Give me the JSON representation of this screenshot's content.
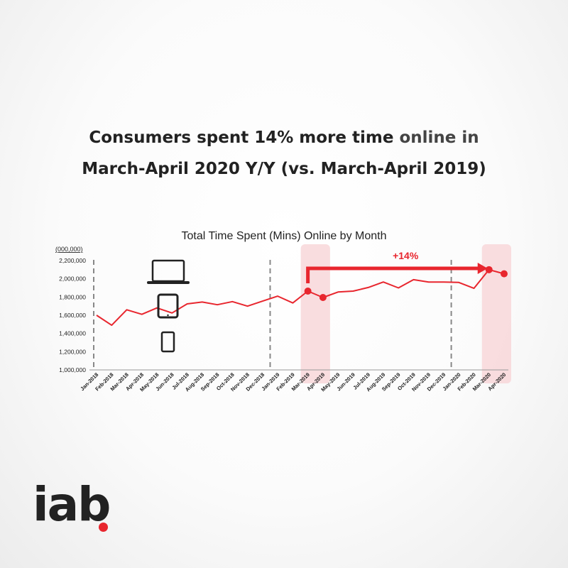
{
  "headline": {
    "line1_part1": "Consumers spent 14% more time ",
    "line1_part2": "online in",
    "line2": "March-April 2020 Y/Y (vs. March-April 2019)"
  },
  "logo": {
    "text": "iab"
  },
  "colors": {
    "series": "#e8262e",
    "highlight": "#f8d7d9",
    "arrow": "#e8262e"
  },
  "icons": [
    "laptop-icon",
    "tablet-icon",
    "phone-icon"
  ],
  "chart_data": {
    "type": "line",
    "title": "Total Time Spent (Mins) Online by Month",
    "unit_label": "(000,000)",
    "categories": [
      "Jan-2018",
      "Feb-2018",
      "Mar-2018",
      "Apr-2018",
      "May-2018",
      "Jun-2018",
      "Jul-2018",
      "Aug-2018",
      "Sep-2018",
      "Oct-2018",
      "Nov-2018",
      "Dec-2018",
      "Jan-2019",
      "Feb-2019",
      "Mar-2019",
      "Apr-2019",
      "May-2019",
      "Jun-2019",
      "Jul-2019",
      "Aug-2019",
      "Sep-2019",
      "Oct-2019",
      "Nov-2019",
      "Dec-2019",
      "Jan-2020",
      "Feb-2020",
      "Mar-2020",
      "Apr-2020"
    ],
    "values": [
      1600000,
      1490000,
      1660000,
      1610000,
      1680000,
      1625000,
      1725000,
      1745000,
      1715000,
      1750000,
      1700000,
      1755000,
      1810000,
      1735000,
      1865000,
      1795000,
      1855000,
      1865000,
      1905000,
      1965000,
      1900000,
      1990000,
      1965000,
      1965000,
      1960000,
      1895000,
      2100000,
      2055000
    ],
    "ylim": [
      1000000,
      2200000
    ],
    "yticks": [
      1000000,
      1200000,
      1400000,
      1600000,
      1800000,
      2000000,
      2200000
    ],
    "ytick_labels": [
      "1,000,000",
      "1,200,000",
      "1,400,000",
      "1,600,000",
      "1,800,000",
      "2,000,000",
      "2,200,000"
    ],
    "highlight_indices": [
      14,
      15,
      26,
      27
    ],
    "highlight_groups": [
      [
        14,
        15
      ],
      [
        26,
        27
      ]
    ],
    "year_dividers_after": [
      "Dec-2018",
      "Dec-2019"
    ],
    "first_divider_at": "Jan-2018",
    "annotation": {
      "text": "+14%",
      "from": "Mar-2019",
      "to": "Mar-2020"
    },
    "grid": false,
    "xlabel": "",
    "ylabel": ""
  }
}
